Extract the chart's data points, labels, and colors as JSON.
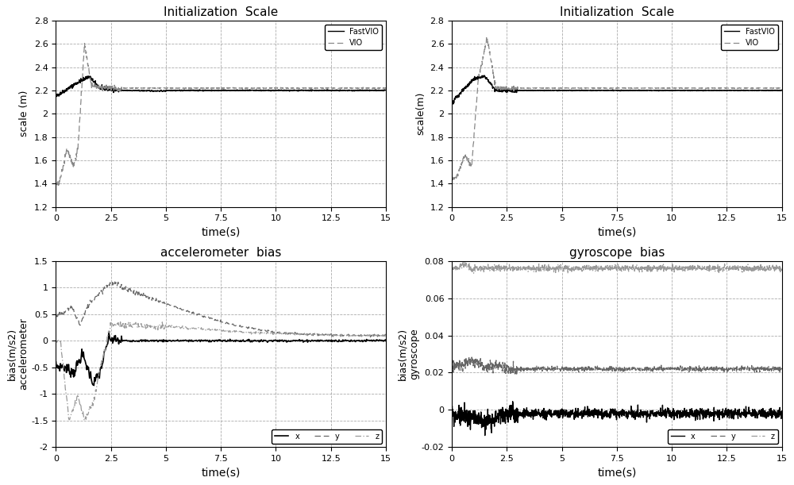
{
  "fig_width": 10.0,
  "fig_height": 6.11,
  "bg_color": "#ffffff",
  "subplot_titles": [
    "Initialization  Scale",
    "Initialization  Scale",
    "accelerometer  bias",
    "gyroscope  bias"
  ],
  "scale_ylim": [
    1.2,
    2.8
  ],
  "scale_yticks": [
    1.2,
    1.4,
    1.6,
    1.8,
    2.0,
    2.2,
    2.4,
    2.6,
    2.8
  ],
  "scale_xlim": [
    0,
    15
  ],
  "scale_xticks": [
    0,
    2.5,
    5,
    7.5,
    10,
    12.5,
    15
  ],
  "acc_ylim": [
    -2.0,
    1.5
  ],
  "acc_yticks": [
    -2.0,
    -1.5,
    -1.0,
    -0.5,
    0,
    0.5,
    1.0,
    1.5
  ],
  "gyro_ylim": [
    -0.02,
    0.08
  ],
  "gyro_yticks": [
    -0.02,
    0.0,
    0.02,
    0.04,
    0.06,
    0.08
  ],
  "time_xlim": [
    0,
    15
  ],
  "time_xticks": [
    0,
    2.5,
    5,
    7.5,
    10,
    12.5,
    15
  ],
  "fastvio_color": "#000000",
  "vio_color": "#888888",
  "x_color": "#000000",
  "y_color": "#666666",
  "z_color": "#999999",
  "grid_color": "#888888",
  "xlabel": "time(s)",
  "scale_ylabel1": "scale (m)",
  "scale_ylabel2": "scale(m)",
  "acc_ylabel_top": "bias(m/s2)",
  "acc_ylabel_bot": "accelerometer",
  "gyro_ylabel_top": "bias(m/s2)",
  "gyro_ylabel_bot": "gyroscope",
  "legend_fastvio": "FastVIO",
  "legend_vio": "VIO",
  "legend_x": "x",
  "legend_y": "y",
  "legend_z": "z"
}
